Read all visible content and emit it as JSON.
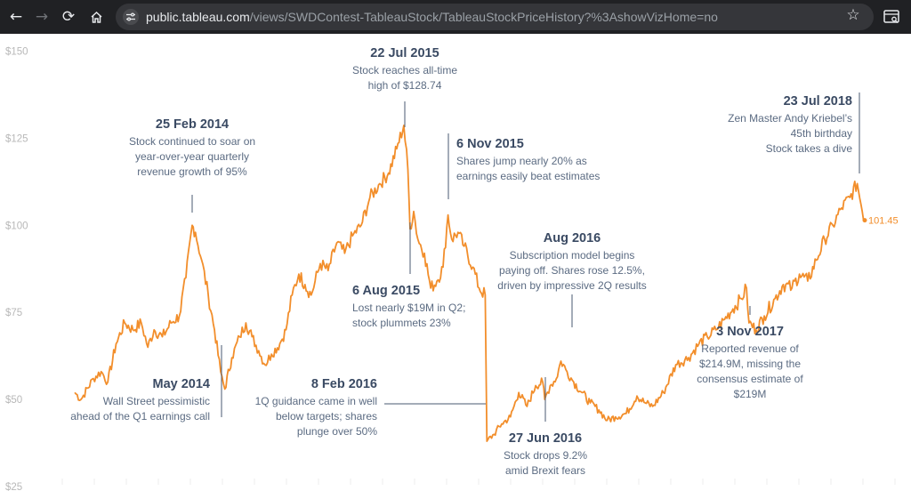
{
  "browser": {
    "url_host": "public.tableau.com",
    "url_path": "/views/SWDContest-TableauStock/TableauStockPriceHistory?%3AshowVizHome=no",
    "icons": [
      "back-arrow-icon",
      "forward-arrow-icon",
      "reload-icon",
      "home-icon",
      "site-info-icon",
      "star-icon",
      "search-panel-icon"
    ]
  },
  "colors": {
    "line": "#f28e2b",
    "annotation_date": "#3a4a63",
    "annotation_text": "#5b6b82",
    "tick": "#b8b8b8"
  },
  "chart_data": {
    "type": "line",
    "title": "",
    "xlabel": "",
    "ylabel": "",
    "ylim": [
      25,
      155
    ],
    "yticks": [
      "$150",
      "$125",
      "$100",
      "$75",
      "$50",
      "$25"
    ],
    "grid": false,
    "end_label": "101.45",
    "series": [
      {
        "values": [
          [
            "2013-05-17",
            52
          ],
          [
            "2013-06-01",
            50
          ],
          [
            "2013-07-01",
            56
          ],
          [
            "2013-07-20",
            58
          ],
          [
            "2013-08-05",
            55
          ],
          [
            "2013-08-25",
            66
          ],
          [
            "2013-09-15",
            72
          ],
          [
            "2013-10-05",
            70
          ],
          [
            "2013-10-25",
            72
          ],
          [
            "2013-11-10",
            65
          ],
          [
            "2013-11-25",
            70
          ],
          [
            "2013-12-15",
            68
          ],
          [
            "2014-01-05",
            72
          ],
          [
            "2014-01-25",
            74
          ],
          [
            "2014-02-10",
            85
          ],
          [
            "2014-02-25",
            100
          ],
          [
            "2014-03-05",
            98
          ],
          [
            "2014-03-20",
            90
          ],
          [
            "2014-04-05",
            80
          ],
          [
            "2014-04-20",
            70
          ],
          [
            "2014-05-05",
            58
          ],
          [
            "2014-05-15",
            53
          ],
          [
            "2014-06-01",
            62
          ],
          [
            "2014-06-20",
            68
          ],
          [
            "2014-07-05",
            72
          ],
          [
            "2014-07-20",
            68
          ],
          [
            "2014-08-05",
            64
          ],
          [
            "2014-08-20",
            60
          ],
          [
            "2014-09-05",
            63
          ],
          [
            "2014-09-25",
            66
          ],
          [
            "2014-10-10",
            70
          ],
          [
            "2014-10-25",
            80
          ],
          [
            "2014-11-10",
            86
          ],
          [
            "2014-11-25",
            83
          ],
          [
            "2014-12-10",
            80
          ],
          [
            "2015-01-01",
            89
          ],
          [
            "2015-01-20",
            87
          ],
          [
            "2015-02-10",
            95
          ],
          [
            "2015-03-01",
            92
          ],
          [
            "2015-03-20",
            97
          ],
          [
            "2015-04-10",
            100
          ],
          [
            "2015-05-01",
            108
          ],
          [
            "2015-05-25",
            112
          ],
          [
            "2015-06-15",
            115
          ],
          [
            "2015-07-05",
            122
          ],
          [
            "2015-07-22",
            128.7
          ],
          [
            "2015-08-01",
            116
          ],
          [
            "2015-08-06",
            99
          ],
          [
            "2015-08-15",
            104
          ],
          [
            "2015-08-25",
            96
          ],
          [
            "2015-09-10",
            92
          ],
          [
            "2015-09-25",
            82
          ],
          [
            "2015-10-10",
            84
          ],
          [
            "2015-10-25",
            88
          ],
          [
            "2015-11-06",
            103
          ],
          [
            "2015-11-15",
            96
          ],
          [
            "2015-11-30",
            98
          ],
          [
            "2015-12-15",
            94
          ],
          [
            "2016-01-05",
            88
          ],
          [
            "2016-01-20",
            82
          ],
          [
            "2016-02-04",
            80
          ],
          [
            "2016-02-08",
            38
          ],
          [
            "2016-02-25",
            40
          ],
          [
            "2016-03-15",
            43
          ],
          [
            "2016-04-05",
            45
          ],
          [
            "2016-04-25",
            52
          ],
          [
            "2016-05-15",
            48
          ],
          [
            "2016-06-05",
            54
          ],
          [
            "2016-06-22",
            55
          ],
          [
            "2016-06-27",
            50
          ],
          [
            "2016-07-10",
            54
          ],
          [
            "2016-07-25",
            56
          ],
          [
            "2016-08-05",
            61
          ],
          [
            "2016-08-20",
            58
          ],
          [
            "2016-09-05",
            55
          ],
          [
            "2016-09-25",
            52
          ],
          [
            "2016-10-15",
            49
          ],
          [
            "2016-11-05",
            47
          ],
          [
            "2016-11-25",
            44
          ],
          [
            "2016-12-15",
            45
          ],
          [
            "2017-01-10",
            46
          ],
          [
            "2017-02-05",
            51
          ],
          [
            "2017-02-25",
            49
          ],
          [
            "2017-03-15",
            48
          ],
          [
            "2017-04-10",
            52
          ],
          [
            "2017-05-10",
            60
          ],
          [
            "2017-06-10",
            62
          ],
          [
            "2017-07-05",
            66
          ],
          [
            "2017-07-25",
            68
          ],
          [
            "2017-08-15",
            70
          ],
          [
            "2017-09-05",
            73
          ],
          [
            "2017-09-25",
            76
          ],
          [
            "2017-10-15",
            79
          ],
          [
            "2017-10-28",
            82
          ],
          [
            "2017-11-03",
            72
          ],
          [
            "2017-11-20",
            70
          ],
          [
            "2017-12-10",
            74
          ],
          [
            "2018-01-05",
            79
          ],
          [
            "2018-01-25",
            83
          ],
          [
            "2018-02-15",
            82
          ],
          [
            "2018-03-05",
            86
          ],
          [
            "2018-03-25",
            84
          ],
          [
            "2018-04-15",
            90
          ],
          [
            "2018-05-05",
            96
          ],
          [
            "2018-05-25",
            100
          ],
          [
            "2018-06-15",
            105
          ],
          [
            "2018-07-05",
            108
          ],
          [
            "2018-07-23",
            112
          ],
          [
            "2018-08-01",
            106
          ],
          [
            "2018-08-10",
            101.45
          ]
        ]
      }
    ]
  },
  "annotations": [
    {
      "date": "25 Feb 2014",
      "lines": [
        "Stock continued to soar on",
        "year-over-year quarterly",
        "revenue growth of 95%"
      ]
    },
    {
      "date": "May 2014",
      "lines": [
        "Wall Street pessimistic",
        "ahead of the Q1 earnings call"
      ]
    },
    {
      "date": "22 Jul 2015",
      "lines": [
        "Stock reaches all-time",
        "high of $128.74"
      ]
    },
    {
      "date": "6 Aug 2015",
      "lines": [
        "Lost nearly $19M in Q2;",
        "stock plummets 23%"
      ]
    },
    {
      "date": "6 Nov 2015",
      "lines": [
        "Shares jump nearly 20% as",
        "earnings easily beat estimates"
      ]
    },
    {
      "date": "8 Feb 2016",
      "lines": [
        "1Q guidance came in well",
        "below targets; shares",
        "plunge over 50%"
      ]
    },
    {
      "date": "27 Jun 2016",
      "lines": [
        "Stock drops 9.2%",
        "amid Brexit fears"
      ]
    },
    {
      "date": "Aug 2016",
      "lines": [
        "Subscription model begins",
        "paying off. Shares rose 12.5%,",
        "driven by impressive 2Q results"
      ]
    },
    {
      "date": "3 Nov 2017",
      "lines": [
        "Reported revenue of",
        "$214.9M, missing the",
        "consensus estimate of",
        "$219M"
      ]
    },
    {
      "date": "23 Jul 2018",
      "lines": [
        "Zen Master Andy Kriebel’s",
        "45th birthday",
        "Stock takes a dive"
      ]
    }
  ]
}
